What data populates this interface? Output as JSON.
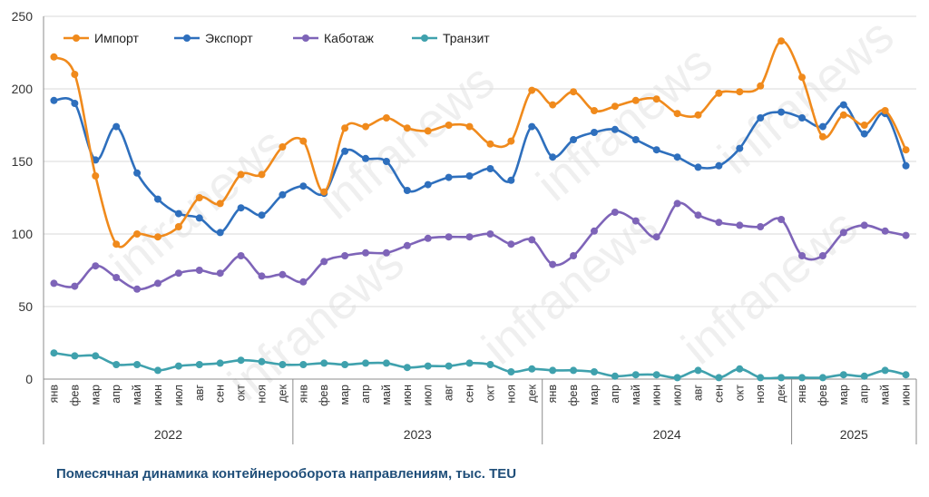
{
  "chart_data": {
    "type": "line",
    "caption": "Помесячная динамика контейнерооборота  направлениям, тыс. TEU",
    "watermark": "infranews",
    "ylim": [
      0,
      250
    ],
    "yticks": [
      "0",
      "50",
      "100",
      "150",
      "200",
      "250"
    ],
    "ytick_values": [
      0,
      50,
      100,
      150,
      200,
      250
    ],
    "grid": true,
    "legend_position": "top-left",
    "categories": [
      "янв",
      "фев",
      "мар",
      "апр",
      "май",
      "июн",
      "июл",
      "авг",
      "сен",
      "окт",
      "ноя",
      "дек",
      "янв",
      "фев",
      "мар",
      "апр",
      "май",
      "июн",
      "июл",
      "авг",
      "сен",
      "окт",
      "ноя",
      "дек",
      "янв",
      "фев",
      "мар",
      "апр",
      "май",
      "июн",
      "июл",
      "авг",
      "сен",
      "окт",
      "ноя",
      "дек",
      "янв",
      "фев",
      "мар",
      "апр",
      "май",
      "июн"
    ],
    "years": [
      {
        "label": "2022",
        "count": 12
      },
      {
        "label": "2023",
        "count": 12
      },
      {
        "label": "2024",
        "count": 12
      },
      {
        "label": "2025",
        "count": 6
      }
    ],
    "series": [
      {
        "name": "Импорт",
        "color": "#f08a1c",
        "values": [
          222,
          210,
          140,
          93,
          100,
          98,
          105,
          125,
          121,
          141,
          141,
          160,
          164,
          129,
          173,
          174,
          180,
          173,
          171,
          175,
          174,
          162,
          164,
          199,
          189,
          198,
          185,
          188,
          192,
          193,
          183,
          182,
          197,
          198,
          202,
          233,
          208,
          167,
          182,
          175,
          185,
          158
        ]
      },
      {
        "name": "Экспорт",
        "color": "#2e6fbd",
        "values": [
          192,
          190,
          151,
          174,
          142,
          124,
          114,
          111,
          101,
          118,
          113,
          127,
          133,
          128,
          157,
          152,
          150,
          130,
          134,
          139,
          140,
          145,
          137,
          174,
          153,
          165,
          170,
          172,
          165,
          158,
          153,
          146,
          147,
          159,
          180,
          184,
          180,
          174,
          189,
          169,
          183,
          147
        ]
      },
      {
        "name": "Каботаж",
        "color": "#7e64b8",
        "values": [
          66,
          64,
          78,
          70,
          62,
          66,
          73,
          75,
          73,
          85,
          71,
          72,
          67,
          81,
          85,
          87,
          87,
          92,
          97,
          98,
          98,
          100,
          93,
          96,
          79,
          85,
          102,
          115,
          109,
          98,
          121,
          113,
          108,
          106,
          105,
          110,
          85,
          85,
          101,
          106,
          102,
          99
        ]
      },
      {
        "name": "Транзит",
        "color": "#3fa1ad",
        "values": [
          18,
          16,
          16,
          10,
          10,
          6,
          9,
          10,
          11,
          13,
          12,
          10,
          10,
          11,
          10,
          11,
          11,
          8,
          9,
          9,
          11,
          10,
          5,
          7,
          6,
          6,
          5,
          2,
          3,
          3,
          1,
          6,
          1,
          7,
          1,
          1,
          1,
          1,
          3,
          2,
          6,
          3
        ]
      }
    ]
  }
}
